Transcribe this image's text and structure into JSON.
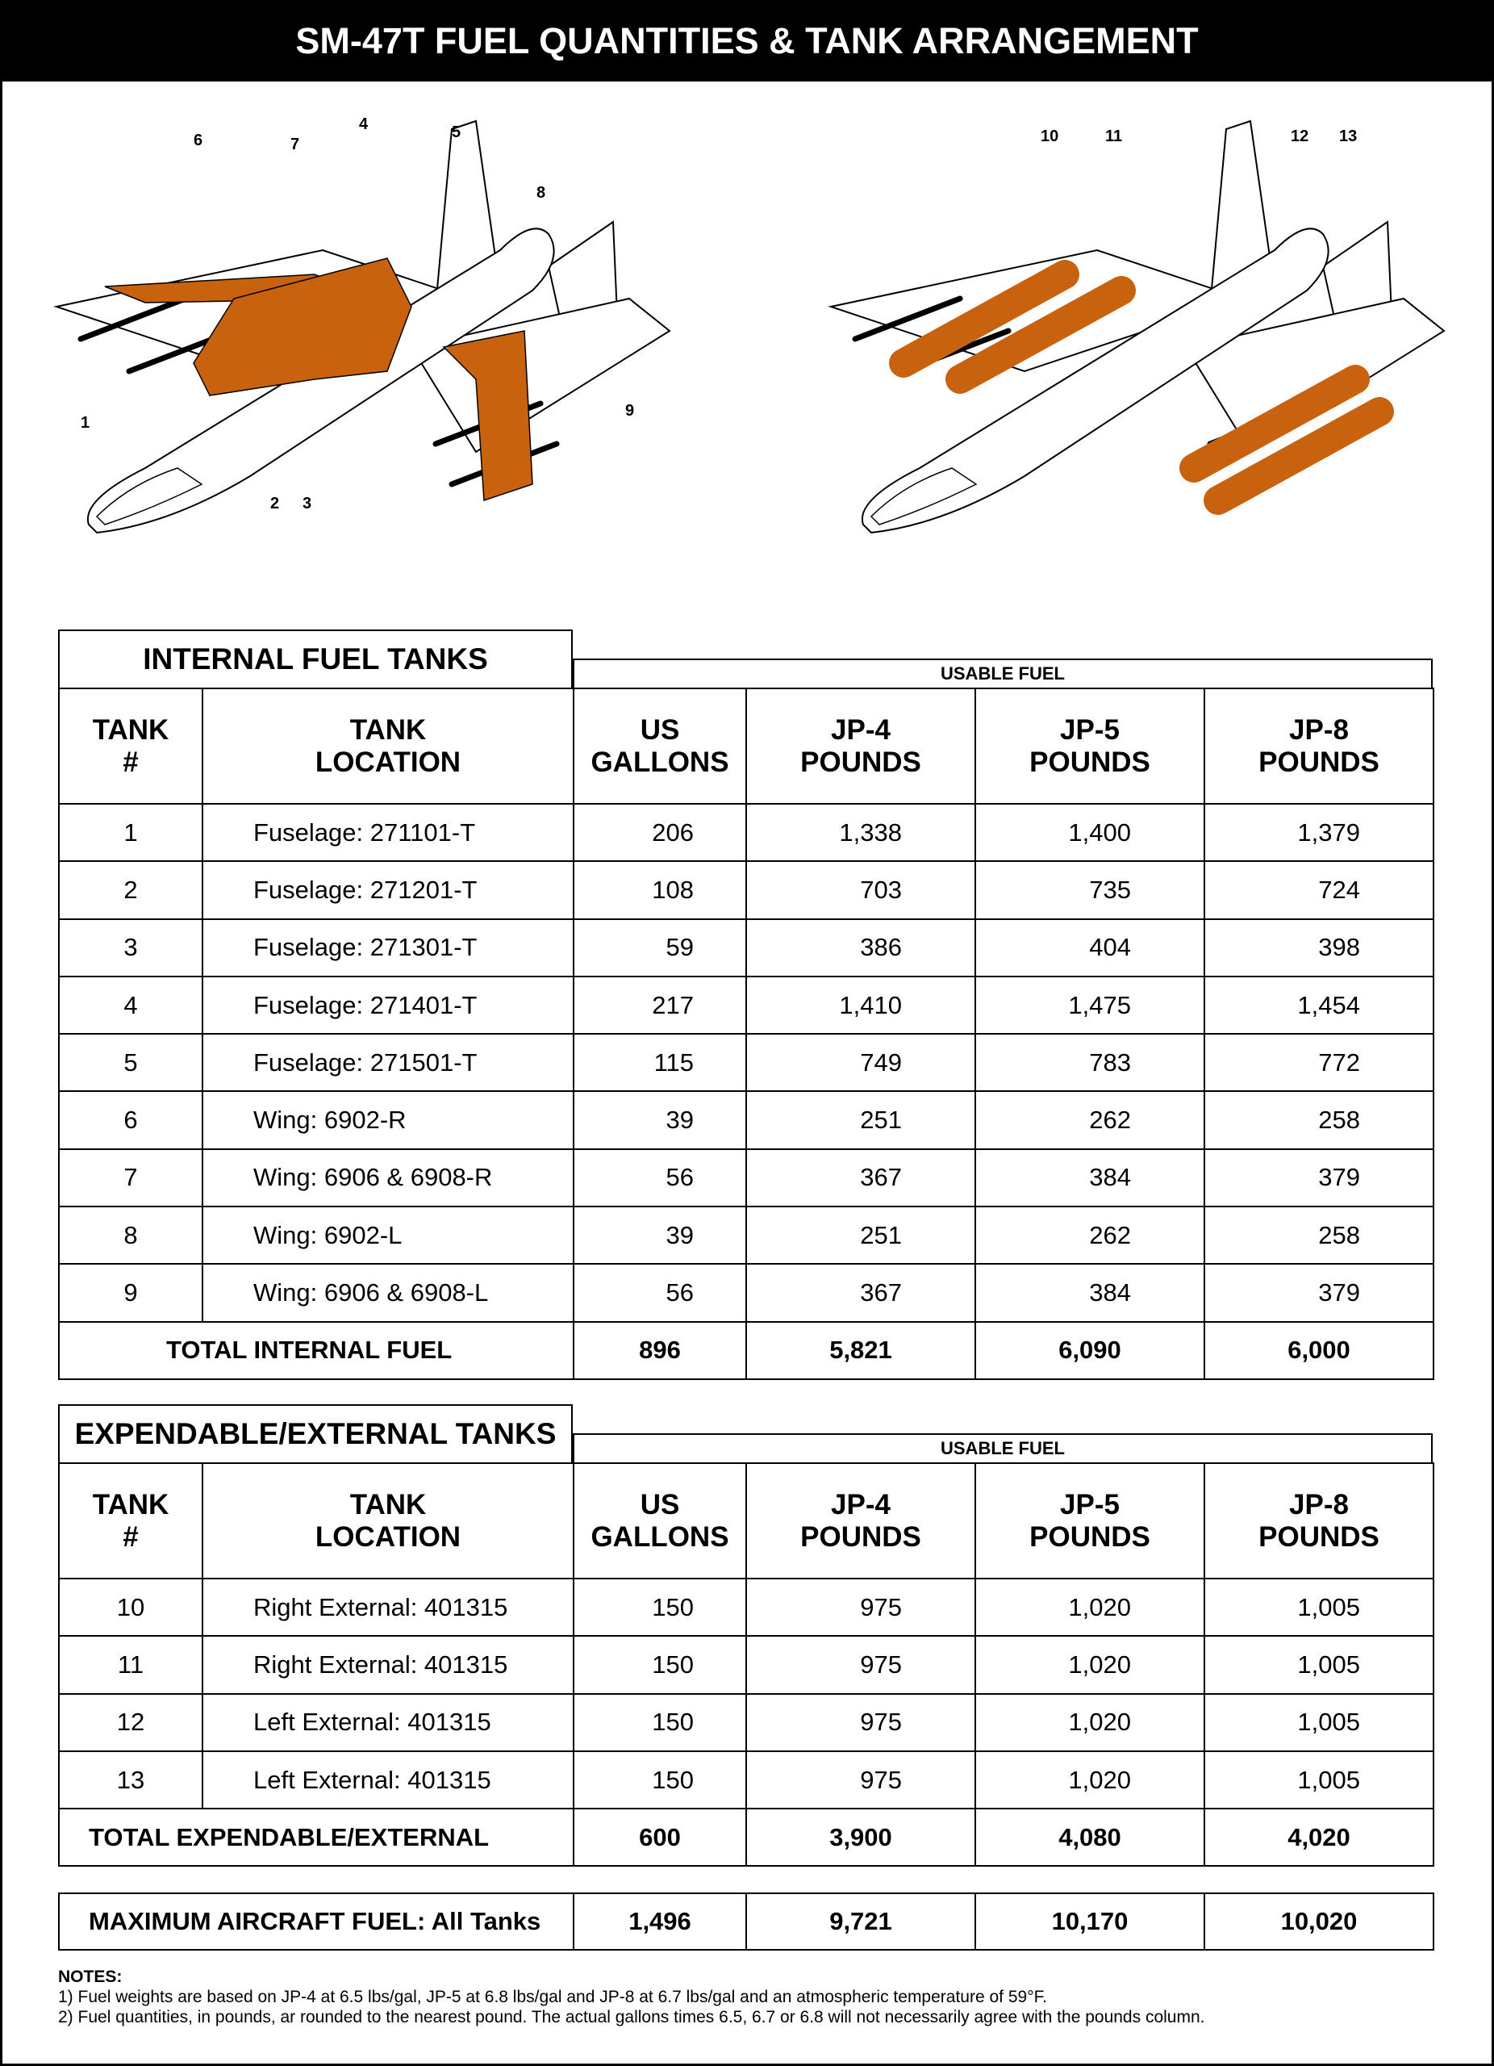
{
  "title": "SM-47T FUEL QUANTITIES & TANK ARRANGEMENT",
  "diagram": {
    "internal_callouts": [
      "1",
      "2",
      "3",
      "4",
      "5",
      "6",
      "7",
      "8",
      "9"
    ],
    "external_callouts": [
      "10",
      "11",
      "12",
      "13"
    ],
    "tank_color": "#c8620f"
  },
  "columns": {
    "tank": "TANK\n#",
    "location": "TANK\nLOCATION",
    "gallons": "US\nGALLONS",
    "jp4": "JP-4\nPOUNDS",
    "jp5": "JP-5\nPOUNDS",
    "jp8": "JP-8\nPOUNDS"
  },
  "internal": {
    "title": "INTERNAL FUEL TANKS",
    "usable": "USABLE FUEL",
    "rows": [
      [
        "1",
        "Fuselage: 271101-T",
        "206",
        "1,338",
        "1,400",
        "1,379"
      ],
      [
        "2",
        "Fuselage: 271201-T",
        "108",
        "703",
        "735",
        "724"
      ],
      [
        "3",
        "Fuselage: 271301-T",
        "59",
        "386",
        "404",
        "398"
      ],
      [
        "4",
        "Fuselage: 271401-T",
        "217",
        "1,410",
        "1,475",
        "1,454"
      ],
      [
        "5",
        "Fuselage: 271501-T",
        "115",
        "749",
        "783",
        "772"
      ],
      [
        "6",
        "Wing: 6902-R",
        "39",
        "251",
        "262",
        "258"
      ],
      [
        "7",
        "Wing: 6906 & 6908-R",
        "56",
        "367",
        "384",
        "379"
      ],
      [
        "8",
        "Wing: 6902-L",
        "39",
        "251",
        "262",
        "258"
      ],
      [
        "9",
        "Wing: 6906 & 6908-L",
        "56",
        "367",
        "384",
        "379"
      ]
    ],
    "total": [
      "TOTAL INTERNAL FUEL",
      "896",
      "5,821",
      "6,090",
      "6,000"
    ]
  },
  "external": {
    "title": "EXPENDABLE/EXTERNAL TANKS",
    "usable": "USABLE FUEL",
    "rows": [
      [
        "10",
        "Right External: 401315",
        "150",
        "975",
        "1,020",
        "1,005"
      ],
      [
        "11",
        "Right External: 401315",
        "150",
        "975",
        "1,020",
        "1,005"
      ],
      [
        "12",
        "Left External: 401315",
        "150",
        "975",
        "1,020",
        "1,005"
      ],
      [
        "13",
        "Left External: 401315",
        "150",
        "975",
        "1,020",
        "1,005"
      ]
    ],
    "total": [
      "TOTAL EXPENDABLE/EXTERNAL",
      "600",
      "3,900",
      "4,080",
      "4,020"
    ]
  },
  "maximum": [
    "MAXIMUM AIRCRAFT FUEL: All Tanks",
    "1,496",
    "9,721",
    "10,170",
    "10,020"
  ],
  "notes": {
    "heading": "NOTES:",
    "items": [
      "1) Fuel weights are based on JP-4 at 6.5 lbs/gal, JP-5 at 6.8 lbs/gal and JP-8 at 6.7 lbs/gal and an atmospheric temperature of 59°F.",
      "2) Fuel quantities, in pounds, ar rounded to the nearest pound. The actual gallons times 6.5, 6.7 or 6.8 will not necessarily agree with the pounds column."
    ]
  }
}
